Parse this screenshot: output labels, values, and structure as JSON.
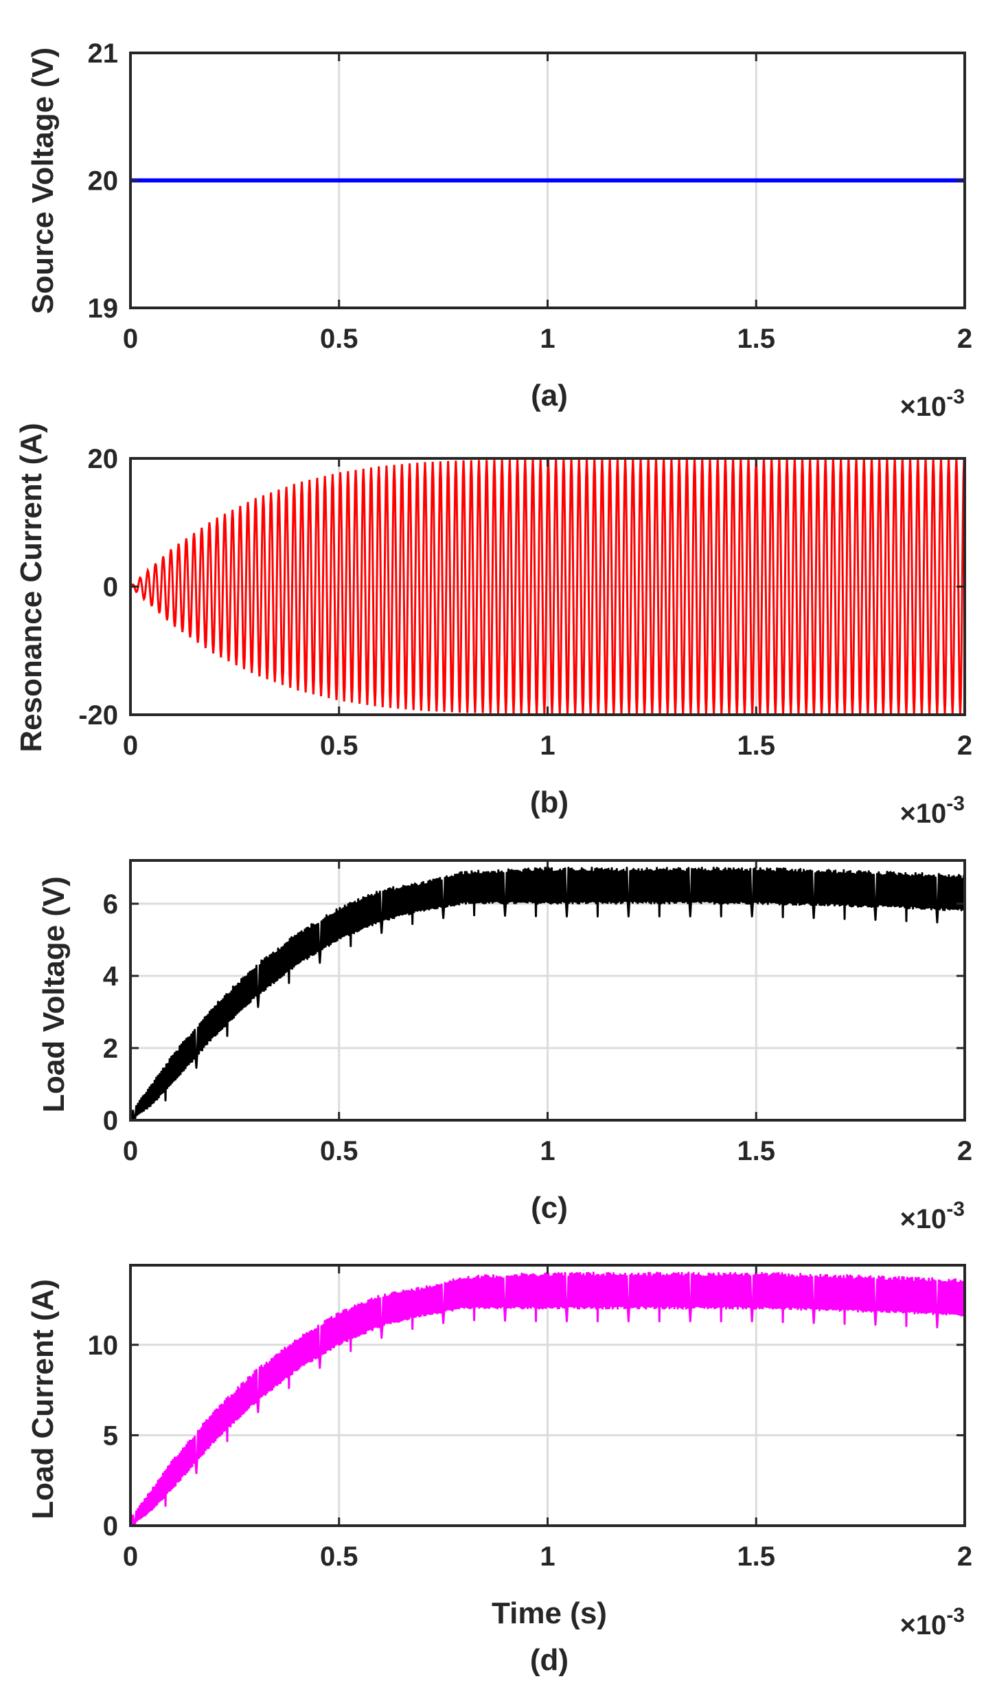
{
  "figure": {
    "exponent_label": "×10",
    "exponent_power": "-3",
    "xlabel_bottom": "Time (s)"
  },
  "chart_data": [
    {
      "id": "a",
      "type": "line",
      "caption": "(a)",
      "ylabel": "Source Voltage (V)",
      "xlabel": "",
      "xlim": [
        0,
        2
      ],
      "ylim": [
        19,
        21
      ],
      "x_ticks": [
        0,
        0.5,
        1,
        1.5,
        2
      ],
      "x_tick_labels": [
        "0",
        "0.5",
        "1",
        "1.5",
        "2"
      ],
      "y_ticks": [
        19,
        20,
        21
      ],
      "y_tick_labels": [
        "19",
        "20",
        "21"
      ],
      "x_scale_note": "×10^-3",
      "grid": true,
      "color": "#0000FF",
      "series": [
        {
          "name": "Source Voltage",
          "x": [
            0,
            2
          ],
          "y": [
            20,
            20
          ]
        }
      ]
    },
    {
      "id": "b",
      "type": "line",
      "caption": "(b)",
      "ylabel": "Resonance Current (A)",
      "xlabel": "",
      "xlim": [
        0,
        2
      ],
      "ylim": [
        -20,
        20
      ],
      "x_ticks": [
        0,
        0.5,
        1,
        1.5,
        2
      ],
      "x_tick_labels": [
        "0",
        "0.5",
        "1",
        "1.5",
        "2"
      ],
      "y_ticks": [
        -20,
        0,
        20
      ],
      "y_tick_labels": [
        "-20",
        "0",
        "20"
      ],
      "x_scale_note": "×10^-3",
      "grid": true,
      "color": "#FF0000",
      "series": [
        {
          "name": "Resonance Current",
          "description": "oscillating current inside a rising envelope",
          "envelope_x": [
            0,
            0.1,
            0.2,
            0.3,
            0.4,
            0.5,
            0.6,
            0.7,
            0.8,
            1.0,
            1.5,
            2.0
          ],
          "envelope_amplitude": [
            0,
            6,
            10.5,
            13.8,
            16.2,
            17.8,
            18.8,
            19.4,
            19.7,
            19.9,
            20,
            20
          ]
        }
      ]
    },
    {
      "id": "c",
      "type": "line",
      "caption": "(c)",
      "ylabel": "Load Voltage (V)",
      "xlabel": "",
      "xlim": [
        0,
        2
      ],
      "ylim": [
        0,
        7.2
      ],
      "x_ticks": [
        0,
        0.5,
        1,
        1.5,
        2
      ],
      "x_tick_labels": [
        "0",
        "0.5",
        "1",
        "1.5",
        "2"
      ],
      "y_ticks": [
        0,
        2,
        4,
        6
      ],
      "y_tick_labels": [
        "0",
        "2",
        "4",
        "6"
      ],
      "x_scale_note": "×10^-3",
      "grid": true,
      "color": "#000000",
      "series": [
        {
          "name": "Load Voltage",
          "description": "rising ripple band settling near 6.5 V",
          "x": [
            0,
            0.05,
            0.1,
            0.2,
            0.3,
            0.4,
            0.5,
            0.6,
            0.7,
            0.8,
            1.0,
            1.2,
            1.5,
            1.8,
            2.0
          ],
          "y_lower": [
            0,
            0.4,
            1.0,
            2.3,
            3.4,
            4.3,
            5.0,
            5.5,
            5.8,
            6.0,
            6.0,
            6.0,
            6.0,
            5.9,
            5.8
          ],
          "y_upper": [
            0.2,
            1.0,
            1.8,
            3.2,
            4.3,
            5.2,
            5.9,
            6.4,
            6.6,
            6.9,
            7.0,
            7.0,
            7.0,
            6.9,
            6.8
          ]
        }
      ]
    },
    {
      "id": "d",
      "type": "line",
      "caption": "(d)",
      "ylabel": "Load Current (A)",
      "xlabel": "Time (s)",
      "xlim": [
        0,
        2
      ],
      "ylim": [
        0,
        14.4
      ],
      "x_ticks": [
        0,
        0.5,
        1,
        1.5,
        2
      ],
      "x_tick_labels": [
        "0",
        "0.5",
        "1",
        "1.5",
        "2"
      ],
      "y_ticks": [
        0,
        5,
        10
      ],
      "y_tick_labels": [
        "0",
        "5",
        "10"
      ],
      "x_scale_note": "×10^-3",
      "grid": true,
      "color": "#FF00FF",
      "series": [
        {
          "name": "Load Current",
          "description": "rising ripple band settling near 13 A",
          "x": [
            0,
            0.05,
            0.1,
            0.2,
            0.3,
            0.4,
            0.5,
            0.6,
            0.7,
            0.8,
            1.0,
            1.2,
            1.5,
            1.8,
            2.0
          ],
          "y_lower": [
            0,
            0.8,
            2.0,
            4.6,
            6.8,
            8.6,
            10.0,
            11.0,
            11.6,
            12.0,
            12.0,
            12.0,
            12.0,
            11.8,
            11.6
          ],
          "y_upper": [
            0.4,
            2.0,
            3.6,
            6.4,
            8.6,
            10.4,
            11.8,
            12.8,
            13.2,
            13.8,
            14.0,
            14.0,
            14.0,
            13.8,
            13.6
          ]
        }
      ]
    }
  ]
}
